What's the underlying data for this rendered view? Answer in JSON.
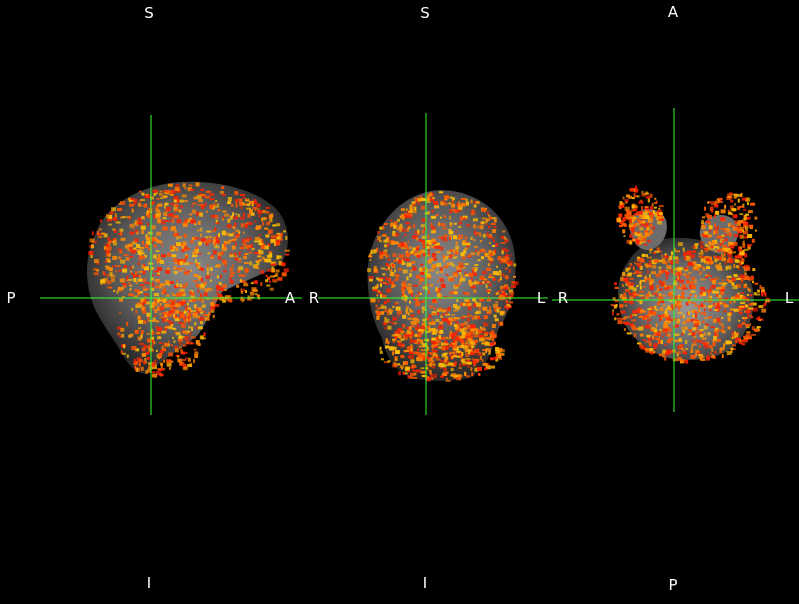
{
  "viewer": {
    "background_color": "#000000",
    "crosshair_color": "#33ff33",
    "overlay_colormap": [
      "#ff2200",
      "#ff5500",
      "#ff8800",
      "#ffbb00"
    ],
    "views": [
      {
        "name": "sagittal",
        "labels": {
          "top": "S",
          "bottom": "I",
          "left": "P",
          "right": "A"
        }
      },
      {
        "name": "coronal",
        "labels": {
          "top": "S",
          "bottom": "I",
          "left": "R",
          "right": "L"
        }
      },
      {
        "name": "axial",
        "labels": {
          "top": "A",
          "bottom": "P",
          "left": "R",
          "right": "L"
        }
      }
    ]
  }
}
